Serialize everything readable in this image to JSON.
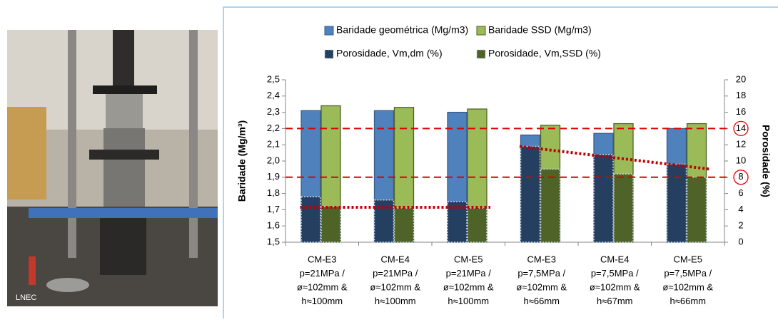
{
  "photo_caption": "LNEC",
  "chart_data": {
    "type": "bar",
    "categories": [
      [
        "CM-E3",
        "p=21MPa /",
        "ø≈102mm &",
        "h≈100mm"
      ],
      [
        "CM-E4",
        "p=21MPa /",
        "ø≈102mm &",
        "h≈100mm"
      ],
      [
        "CM-E5",
        "p=21MPa /",
        "ø≈102mm &",
        "h≈100mm"
      ],
      [
        "CM-E3",
        "p=7,5MPa /",
        "ø≈102mm &",
        "h≈66mm"
      ],
      [
        "CM-E4",
        "p=7,5MPa /",
        "ø≈102mm &",
        "h≈67mm"
      ],
      [
        "CM-E5",
        "p=7,5MPa /",
        "ø≈102mm &",
        "h≈66mm"
      ]
    ],
    "series": [
      {
        "name": "Baridade geométrica (Mg/m3)",
        "color": "#4f81bd",
        "values": [
          2.31,
          2.31,
          2.3,
          2.16,
          2.17,
          2.2
        ]
      },
      {
        "name": "Baridade SSD (Mg/m3)",
        "color": "#9bbb59",
        "values": [
          2.34,
          2.33,
          2.32,
          2.22,
          2.23,
          2.23
        ]
      },
      {
        "name": "Porosidade, Vm,dm (%)",
        "color": "#243f60",
        "axis": "y2",
        "values": [
          5.6,
          5.2,
          5.0,
          11.8,
          10.8,
          9.6
        ]
      },
      {
        "name": "Porosidade, Vm,SSD (%)",
        "color": "#4f6228",
        "axis": "y2",
        "values": [
          4.4,
          4.2,
          4.2,
          9.0,
          8.4,
          8.0
        ]
      }
    ],
    "y_label": "Baridade (Mg/m³)",
    "y2_label": "Porosidade (%)",
    "ylim": [
      1.5,
      2.5
    ],
    "yticks": [
      {
        "value": 1.5,
        "label": "1,5"
      },
      {
        "value": 1.6,
        "label": "1,6"
      },
      {
        "value": 1.7,
        "label": "1,7"
      },
      {
        "value": 1.8,
        "label": "1,8"
      },
      {
        "value": 1.9,
        "label": "1,9"
      },
      {
        "value": 2.0,
        "label": "2,0"
      },
      {
        "value": 2.1,
        "label": "2,1"
      },
      {
        "value": 2.2,
        "label": "2,2"
      },
      {
        "value": 2.3,
        "label": "2,3"
      },
      {
        "value": 2.4,
        "label": "2,4"
      },
      {
        "value": 2.5,
        "label": "2,5"
      }
    ],
    "y2lim": [
      0,
      20
    ],
    "y2ticks": [
      0,
      2,
      4,
      6,
      8,
      10,
      12,
      14,
      16,
      18,
      20
    ],
    "reference_lines_y2": [
      14,
      8
    ],
    "trend_lines_y2": [
      {
        "x": [
          0,
          2
        ],
        "values": [
          4.3,
          4.3
        ]
      },
      {
        "x": [
          3,
          5
        ],
        "values": [
          11.8,
          9.0
        ]
      }
    ],
    "grid": false
  }
}
